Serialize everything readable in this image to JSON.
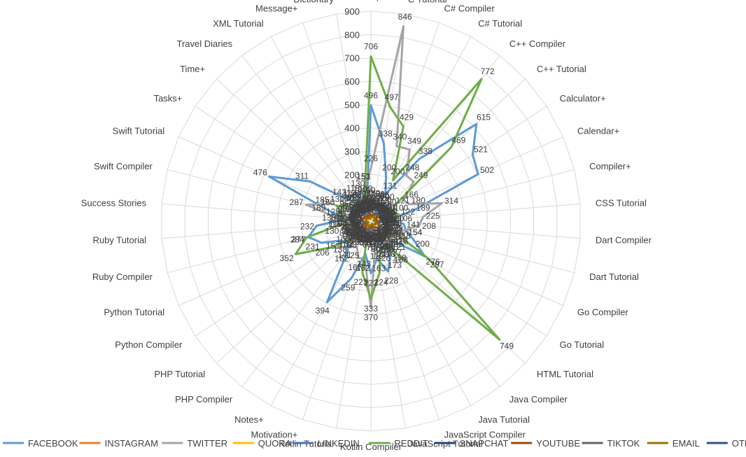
{
  "chart_data": {
    "type": "radar",
    "title": "",
    "radial_range": [
      0,
      900
    ],
    "radial_ticks": [
      0,
      100,
      200,
      300,
      400,
      500,
      600,
      700,
      800,
      900
    ],
    "legend_position": "bottom",
    "grid": true,
    "categories": [
      "C Compiler",
      "C Tutorial",
      "C# Compiler",
      "C# Tutorial",
      "C++ Compiler",
      "C++ Tutorial",
      "Calculator+",
      "Calendar+",
      "Compiler+",
      "CSS Tutorial",
      "Dart Compiler",
      "Dart Tutorial",
      "Go Compiler",
      "Go Tutorial",
      "HTML Tutorial",
      "Java Compiler",
      "Java Tutorial",
      "JavaScript Compiler",
      "JavaScript Tutorial",
      "Kotlin Compiler",
      "Kotlin Tutorial",
      "Motivation+",
      "Notes+",
      "PHP Compiler",
      "PHP Tutorial",
      "Python Compiler",
      "Python Tutorial",
      "Ruby Compiler",
      "Ruby Tutorial",
      "Success Stories",
      "Swift Compiler",
      "Swift Tutorial",
      "Tasks+",
      "Time+",
      "Travel Diaries",
      "XML Tutorial",
      "Message+",
      "Dictionary"
    ],
    "series": [
      {
        "name": "FACEBOOK",
        "color": "#5b9bd5",
        "values": [
          496,
          338,
          200,
          131,
          338,
          615,
          521,
          502,
          189,
          80,
          141,
          154,
          200,
          276,
          121,
          127,
          173,
          228,
          163,
          223,
          143,
          259,
          394,
          162,
          138,
          152,
          231,
          277,
          232,
          107,
          189,
          476,
          311,
          142,
          100,
          118,
          130,
          100
        ]
      },
      {
        "name": "INSTAGRAM",
        "color": "#ed7d31",
        "values": [
          40,
          55,
          60,
          80,
          70,
          50,
          40,
          35,
          30,
          45,
          60,
          70,
          85,
          110,
          90,
          100,
          80,
          70,
          60,
          50,
          40,
          45,
          60,
          70,
          85,
          80,
          75,
          60,
          50,
          40,
          35,
          30,
          25,
          20,
          18,
          15,
          12,
          10
        ]
      },
      {
        "name": "TWITTER",
        "color": "#a5a5a5",
        "values": [
          226,
          846,
          340,
          349,
          248,
          249,
          166,
          180,
          314,
          225,
          208,
          154,
          113,
          116,
          105,
          158,
          96,
          108,
          110,
          370,
          162,
          167,
          125,
          141,
          102,
          100,
          84,
          130,
          110,
          138,
          287,
          185,
          80,
          60,
          90,
          85,
          100,
          153
        ]
      },
      {
        "name": "QUORA",
        "color": "#ffc000",
        "values": [
          30,
          25,
          20,
          35,
          40,
          30,
          25,
          20,
          30,
          35,
          40,
          30,
          25,
          20,
          18,
          30,
          35,
          40,
          30,
          25,
          20,
          18,
          25,
          30,
          35,
          40,
          30,
          25,
          20,
          18,
          15,
          20,
          25,
          30,
          35,
          30,
          25,
          20
        ]
      },
      {
        "name": "LINKEDIN",
        "color": "#4472c4",
        "values": [
          60,
          55,
          50,
          45,
          40,
          50,
          60,
          55,
          50,
          45,
          40,
          35,
          40,
          45,
          50,
          55,
          60,
          55,
          50,
          45,
          40,
          35,
          40,
          45,
          50,
          55,
          60,
          55,
          50,
          45,
          40,
          35,
          30,
          35,
          40,
          45,
          50,
          55
        ]
      },
      {
        "name": "REDDIT",
        "color": "#70ad47",
        "values": [
          706,
          497,
          429,
          200,
          772,
          469,
          121,
          100,
          122,
          106,
          50,
          79,
          100,
          297,
          749,
          168,
          118,
          126,
          224,
          333,
          223,
          43,
          60,
          88,
          110,
          206,
          352,
          284,
          116,
          92,
          125,
          160,
          130,
          58,
          110,
          44,
          45,
          151
        ]
      },
      {
        "name": "SNAPCHAT",
        "color": "#264478",
        "values": [
          90,
          80,
          70,
          60,
          55,
          50,
          45,
          40,
          50,
          60,
          70,
          75,
          80,
          85,
          90,
          95,
          100,
          90,
          80,
          70,
          60,
          55,
          50,
          45,
          40,
          50,
          60,
          70,
          75,
          80,
          85,
          90,
          95,
          100,
          90,
          85,
          80,
          75
        ]
      },
      {
        "name": "YOUTUBE",
        "color": "#9e480e",
        "values": [
          20,
          25,
          30,
          35,
          40,
          35,
          30,
          25,
          20,
          25,
          30,
          35,
          40,
          45,
          40,
          35,
          30,
          25,
          20,
          25,
          30,
          35,
          40,
          35,
          30,
          25,
          20,
          25,
          30,
          35,
          40,
          35,
          30,
          25,
          20,
          25,
          30,
          35
        ]
      },
      {
        "name": "TIKTOK",
        "color": "#636363",
        "values": [
          45,
          40,
          35,
          30,
          35,
          40,
          45,
          50,
          45,
          40,
          35,
          30,
          35,
          40,
          45,
          50,
          45,
          40,
          35,
          30,
          35,
          40,
          45,
          50,
          45,
          40,
          35,
          30,
          35,
          40,
          45,
          50,
          45,
          40,
          35,
          30,
          35,
          40
        ]
      },
      {
        "name": "EMAIL",
        "color": "#997300",
        "values": [
          15,
          18,
          20,
          22,
          25,
          20,
          18,
          15,
          12,
          15,
          18,
          20,
          22,
          25,
          20,
          18,
          15,
          12,
          15,
          18,
          20,
          22,
          25,
          20,
          18,
          15,
          12,
          15,
          18,
          20,
          22,
          25,
          20,
          18,
          15,
          12,
          15,
          18
        ]
      },
      {
        "name": "OTHER",
        "color": "#2f4f8f",
        "values": [
          70,
          75,
          80,
          85,
          90,
          80,
          70,
          60,
          55,
          50,
          55,
          60,
          65,
          70,
          75,
          80,
          85,
          90,
          80,
          70,
          60,
          55,
          50,
          55,
          60,
          65,
          70,
          75,
          80,
          85,
          90,
          80,
          70,
          60,
          55,
          50,
          55,
          60
        ]
      }
    ]
  }
}
